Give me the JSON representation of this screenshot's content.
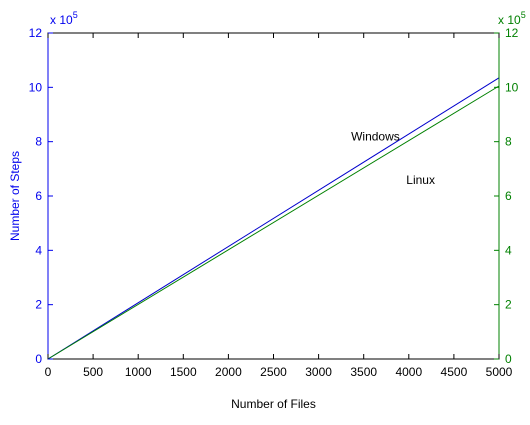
{
  "chart_data": {
    "type": "line",
    "xlabel": "Number of Files",
    "ylabel": "Number of Steps",
    "xlim": [
      0,
      5000
    ],
    "xticks": [
      0,
      500,
      1000,
      1500,
      2000,
      2500,
      3000,
      3500,
      4000,
      4500,
      5000
    ],
    "ylim_left": [
      0,
      12
    ],
    "ylim_right": [
      0,
      12
    ],
    "yticks_left": [
      0,
      2,
      4,
      6,
      8,
      10,
      12
    ],
    "yticks_right": [
      0,
      2,
      4,
      6,
      8,
      10,
      12
    ],
    "exponent_left": "x 10",
    "exponent_left_power": "5",
    "exponent_right": "x 10",
    "exponent_right_power": "5",
    "grid": false,
    "legend": "none",
    "colors": {
      "left_axis": "#0000ee",
      "right_axis": "#008000"
    },
    "series": [
      {
        "color": "#0000cc",
        "axis": "left",
        "x": [
          0,
          5000
        ],
        "y": [
          0,
          10.35
        ]
      },
      {
        "color": "#008000",
        "axis": "right",
        "x": [
          0,
          5000
        ],
        "y": [
          0,
          10.05
        ]
      }
    ],
    "annotations": [
      {
        "text": "Windows",
        "x": 3900,
        "y": 8.05
      },
      {
        "text": "Linux",
        "x": 4290,
        "y": 6.45
      }
    ]
  }
}
